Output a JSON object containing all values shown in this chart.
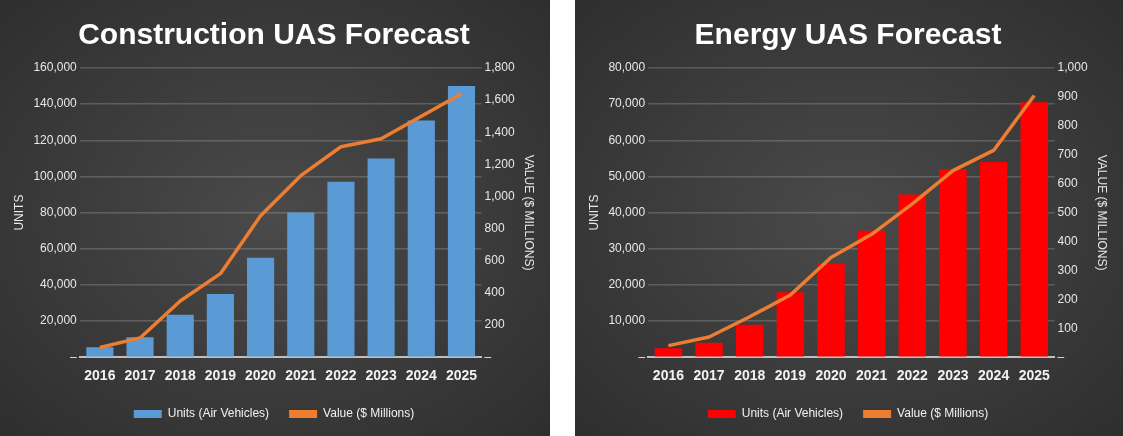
{
  "chart_data": [
    {
      "type": "bar",
      "title": "Construction UAS Forecast",
      "ylabel": "UNITS",
      "y2label": "VALUE ($ MILLIONS)",
      "categories": [
        "2016",
        "2017",
        "2018",
        "2019",
        "2020",
        "2021",
        "2022",
        "2023",
        "2024",
        "2025"
      ],
      "series": [
        {
          "name": "Units (Air Vehicles)",
          "color": "#5b9bd5",
          "values": [
            5500,
            11000,
            23500,
            35000,
            55000,
            80000,
            97000,
            110000,
            131000,
            150000
          ]
        },
        {
          "type": "line",
          "axis": "y2",
          "name": "Value ($ Millions)",
          "color": "#ed7d31",
          "values": [
            60,
            120,
            350,
            520,
            880,
            1130,
            1310,
            1360,
            1500,
            1640
          ]
        }
      ],
      "ylim": [
        0,
        160000
      ],
      "yticks": [
        {
          "value": 0,
          "label": "–"
        },
        {
          "value": 20000,
          "label": "20,000"
        },
        {
          "value": 40000,
          "label": "40,000"
        },
        {
          "value": 60000,
          "label": "60,000"
        },
        {
          "value": 80000,
          "label": "80,000"
        },
        {
          "value": 100000,
          "label": "100,000"
        },
        {
          "value": 120000,
          "label": "120,000"
        },
        {
          "value": 140000,
          "label": "140,000"
        },
        {
          "value": 160000,
          "label": "160,000"
        }
      ],
      "y2lim": [
        0,
        1800
      ],
      "y2ticks": [
        {
          "value": 0,
          "label": "–"
        },
        200,
        400,
        600,
        800,
        {
          "value": 1000,
          "label": "1,000"
        },
        {
          "value": 1200,
          "label": "1,200"
        },
        {
          "value": 1400,
          "label": "1,400"
        },
        {
          "value": 1600,
          "label": "1,600"
        },
        {
          "value": 1800,
          "label": "1,800"
        }
      ],
      "grid": "y",
      "legend": "bottom",
      "marker": "none"
    },
    {
      "type": "bar",
      "title": "Energy UAS Forecast",
      "ylabel": "UNITS",
      "y2label": "VALUE ($ MILLIONS)",
      "categories": [
        "2016",
        "2017",
        "2018",
        "2019",
        "2020",
        "2021",
        "2022",
        "2023",
        "2024",
        "2025"
      ],
      "series": [
        {
          "name": "Units (Air Vehicles)",
          "color": "#ff0000",
          "values": [
            2500,
            4000,
            9000,
            18000,
            26000,
            35000,
            45000,
            52000,
            54000,
            70500
          ]
        },
        {
          "type": "line",
          "axis": "y2",
          "name": "Value ($ Millions)",
          "color": "#ed7d31",
          "values": [
            40,
            70,
            140,
            215,
            345,
            425,
            530,
            645,
            715,
            905
          ]
        }
      ],
      "ylim": [
        0,
        80000
      ],
      "yticks": [
        {
          "value": 0,
          "label": "–"
        },
        {
          "value": 10000,
          "label": "10,000"
        },
        {
          "value": 20000,
          "label": "20,000"
        },
        {
          "value": 30000,
          "label": "30,000"
        },
        {
          "value": 40000,
          "label": "40,000"
        },
        {
          "value": 50000,
          "label": "50,000"
        },
        {
          "value": 60000,
          "label": "60,000"
        },
        {
          "value": 70000,
          "label": "70,000"
        },
        {
          "value": 80000,
          "label": "80,000"
        }
      ],
      "y2lim": [
        0,
        1000
      ],
      "y2ticks": [
        {
          "value": 0,
          "label": "–"
        },
        100,
        200,
        300,
        400,
        500,
        600,
        700,
        800,
        900,
        {
          "value": 1000,
          "label": "1,000"
        }
      ],
      "grid": "y",
      "legend": "bottom",
      "marker": "none"
    }
  ]
}
